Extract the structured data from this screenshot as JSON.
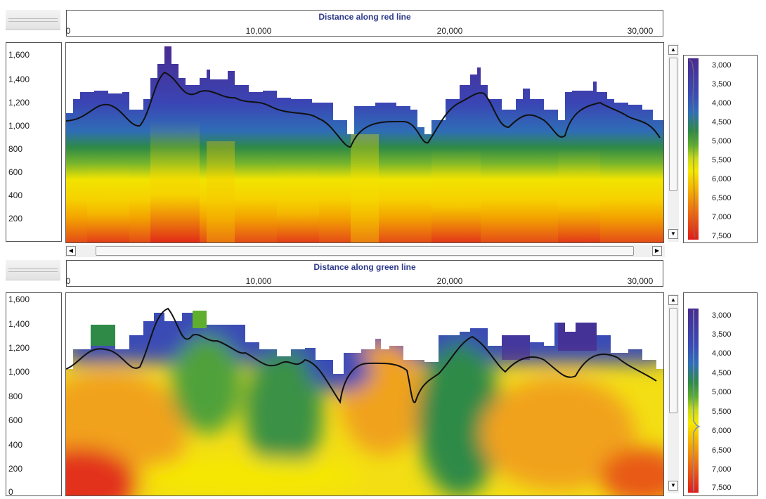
{
  "panels": [
    {
      "id": "red",
      "header_title": "Distance along red line",
      "x_ticks": [
        "0",
        "10,000",
        "20,000",
        "30,000"
      ],
      "y_ticks": [
        "1,600",
        "1,400",
        "1,200",
        "1,000",
        "800",
        "600",
        "400",
        "200"
      ],
      "colorbar_ticks": [
        "3,000",
        "3,500",
        "4,000",
        "4,500",
        "5,000",
        "5,500",
        "6,000",
        "6,500",
        "7,000",
        "7,500"
      ]
    },
    {
      "id": "green",
      "header_title": "Distance along green line",
      "x_ticks": [
        "0",
        "10,000",
        "20,000",
        "30,000"
      ],
      "y_ticks": [
        "1,600",
        "1,400",
        "1,200",
        "1,000",
        "800",
        "600",
        "400",
        "200",
        "0"
      ],
      "colorbar_ticks": [
        "3,000",
        "3,500",
        "4,000",
        "4,500",
        "5,000",
        "5,500",
        "6,000",
        "6,500",
        "7,000",
        "7,500"
      ]
    }
  ],
  "colormap": [
    "#4a2a8e",
    "#3b4bb5",
    "#2f6fb8",
    "#2e8a46",
    "#5fae2e",
    "#c8d81a",
    "#f6e800",
    "#f6b300",
    "#ee6a12",
    "#dd1d1a"
  ],
  "scroll_icons": {
    "up": "arrow-up-icon",
    "down": "arrow-down-icon",
    "left": "arrow-left-icon",
    "right": "arrow-right-icon"
  }
}
